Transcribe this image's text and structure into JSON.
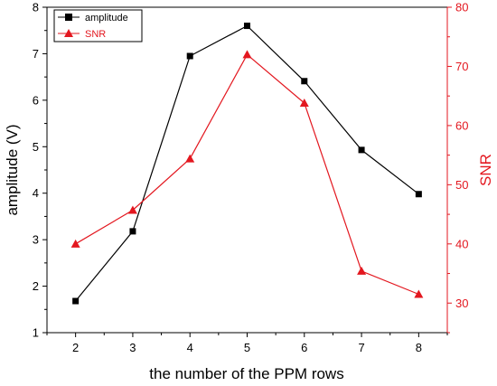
{
  "chart_data": {
    "type": "line",
    "xlabel": "the number of the PPM rows",
    "ylabel_left": "amplitude (V)",
    "ylabel_right": "SNR",
    "x": [
      2,
      3,
      4,
      5,
      6,
      7,
      8
    ],
    "x_ticks": [
      "2",
      "3",
      "4",
      "5",
      "6",
      "7",
      "8"
    ],
    "xlim": [
      1.5,
      8.5
    ],
    "ylim_left": [
      1,
      8
    ],
    "yticks_left": [
      "1",
      "2",
      "3",
      "4",
      "5",
      "6",
      "7",
      "8"
    ],
    "ylim_right": [
      25,
      80
    ],
    "yticks_right": [
      "30",
      "40",
      "50",
      "60",
      "70",
      "80"
    ],
    "grid": false,
    "legend_position": "top-left",
    "series": [
      {
        "name": "amplitude",
        "axis": "left",
        "color": "#000000",
        "marker": "square",
        "values": [
          1.68,
          3.18,
          6.95,
          7.6,
          6.41,
          4.93,
          3.98
        ]
      },
      {
        "name": "SNR",
        "axis": "right",
        "color": "#e3171f",
        "marker": "triangle",
        "values": [
          40.0,
          45.7,
          54.4,
          72.0,
          63.8,
          35.4,
          31.5
        ]
      }
    ]
  }
}
